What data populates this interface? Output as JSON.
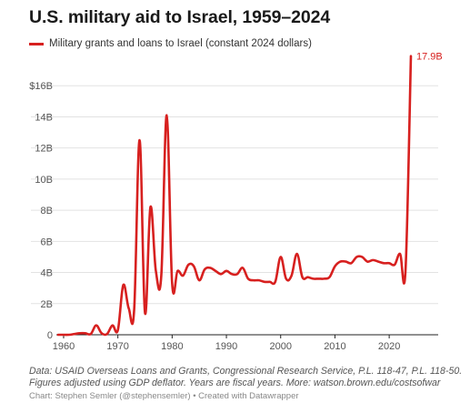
{
  "title": "U.S. military aid to Israel, 1959–2024",
  "legend_label": "Military grants and loans to Israel (constant 2024 dollars)",
  "notes_line1": "Data: USAID Overseas Loans and Grants, Congressional Research Service, P.L. 118-47, P.L. 118-50.",
  "notes_line2": "Figures adjusted using GDP deflator. Years are fiscal years. More: watson.brown.edu/costsofwar",
  "credit": "Chart: Stephen Semler (@stephensemler) • Created with Datawrapper",
  "colors": {
    "series": "#d7201f",
    "grid": "#e2e2e2",
    "axis": "#222222",
    "tick": "#555555"
  },
  "chart_data": {
    "type": "line",
    "title": "U.S. military aid to Israel, 1959–2024",
    "xlim": [
      1959,
      2024
    ],
    "ylim": [
      0,
      18
    ],
    "x_ticks": [
      1960,
      1970,
      1980,
      1990,
      2000,
      2010,
      2020
    ],
    "x_tick_labels": [
      "1960",
      "1970",
      "1980",
      "1990",
      "2000",
      "2010",
      "2020"
    ],
    "y_ticks": [
      0,
      2,
      4,
      6,
      8,
      10,
      12,
      14,
      16
    ],
    "y_tick_labels": [
      "0",
      "2B",
      "4B",
      "6B",
      "8B",
      "10B",
      "12B",
      "14B",
      "$16B"
    ],
    "grid": true,
    "legend_position": "top-left",
    "end_label": "17.9B",
    "series": [
      {
        "name": "Military grants and loans to Israel (constant 2024 dollars)",
        "x": [
          1959,
          1960,
          1961,
          1962,
          1963,
          1964,
          1965,
          1966,
          1967,
          1968,
          1969,
          1970,
          1971,
          1972,
          1973,
          1974,
          1975,
          1976,
          1977,
          1978,
          1979,
          1980,
          1981,
          1982,
          1983,
          1984,
          1985,
          1986,
          1987,
          1988,
          1989,
          1990,
          1991,
          1992,
          1993,
          1994,
          1995,
          1996,
          1997,
          1998,
          1999,
          2000,
          2001,
          2002,
          2003,
          2004,
          2005,
          2006,
          2007,
          2008,
          2009,
          2010,
          2011,
          2012,
          2013,
          2014,
          2015,
          2016,
          2017,
          2018,
          2019,
          2020,
          2021,
          2022,
          2023,
          2024
        ],
        "values": [
          0,
          0,
          0,
          0.05,
          0.1,
          0.1,
          0.05,
          0.6,
          0.1,
          0.05,
          0.6,
          0.3,
          3.2,
          1.7,
          1.6,
          12.5,
          1.4,
          8.2,
          4.1,
          3.8,
          14.1,
          3.3,
          4.1,
          3.8,
          4.5,
          4.4,
          3.5,
          4.2,
          4.3,
          4.1,
          3.9,
          4.1,
          3.9,
          3.9,
          4.3,
          3.6,
          3.5,
          3.5,
          3.4,
          3.4,
          3.4,
          5.0,
          3.6,
          3.8,
          5.2,
          3.7,
          3.7,
          3.6,
          3.6,
          3.6,
          3.7,
          4.4,
          4.7,
          4.7,
          4.6,
          5.0,
          5.0,
          4.7,
          4.8,
          4.7,
          4.6,
          4.6,
          4.5,
          5.2,
          4.1,
          17.9
        ]
      }
    ]
  }
}
